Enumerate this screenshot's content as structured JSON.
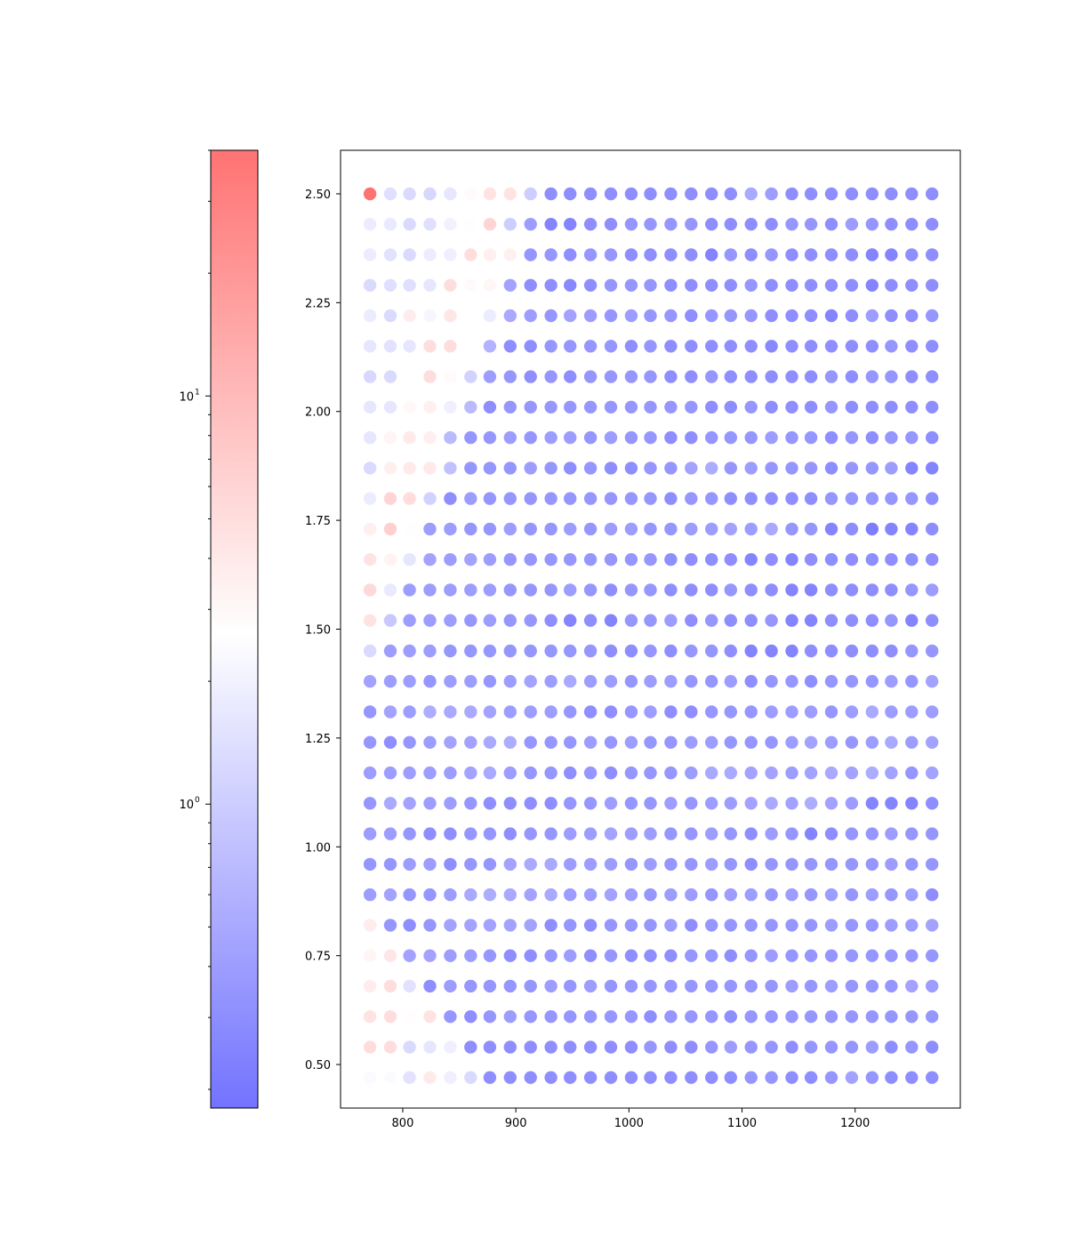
{
  "chart_data": {
    "type": "scatter",
    "title": "",
    "xlabel": "",
    "ylabel": "",
    "x": [
      771,
      789,
      806,
      824,
      842,
      860,
      877,
      895,
      913,
      931,
      948,
      966,
      984,
      1002,
      1019,
      1037,
      1055,
      1073,
      1090,
      1108,
      1126,
      1144,
      1161,
      1179,
      1197,
      1215,
      1232,
      1250,
      1268
    ],
    "y": [
      2.5,
      2.43,
      2.36,
      2.29,
      2.22,
      2.15,
      2.08,
      2.01,
      1.94,
      1.87,
      1.8,
      1.73,
      1.66,
      1.59,
      1.52,
      1.45,
      1.38,
      1.31,
      1.24,
      1.17,
      1.1,
      1.03,
      0.96,
      0.89,
      0.82,
      0.75,
      0.68,
      0.61,
      0.54,
      0.47
    ],
    "xlim": [
      745,
      1293
    ],
    "ylim": [
      0.4,
      2.6
    ],
    "xticks": [
      800,
      900,
      1000,
      1100,
      1200
    ],
    "xtick_labels": [
      "800",
      "900",
      "1000",
      "1100",
      "1200"
    ],
    "yticks": [
      0.5,
      0.75,
      1.0,
      1.25,
      1.5,
      1.75,
      2.0,
      2.25,
      2.5
    ],
    "ytick_labels": [
      "0.50",
      "0.75",
      "1.00",
      "1.25",
      "1.50",
      "1.75",
      "2.00",
      "2.25",
      "2.50"
    ],
    "colorbar": {
      "scale": "log",
      "range": [
        0.18,
        40
      ],
      "ticks": [
        1,
        10
      ],
      "tick_labels": [
        {
          "base": "10",
          "exp": "0"
        },
        {
          "base": "10",
          "exp": "1"
        }
      ],
      "colormap": "bwr",
      "color_low": "#4444ff",
      "color_mid": "#ffffff",
      "color_high": "#ff4444",
      "center": 2.6
    },
    "marker_alpha": 0.75,
    "values_note_rows_top_to_bottom": "",
    "values": [
      [
        40,
        1.4,
        1.3,
        1.2,
        1.6,
        2.8,
        4.5,
        4.5,
        1,
        0.3,
        0.3,
        0.3,
        0.3,
        0.3,
        0.3,
        0.3,
        0.3,
        0.3,
        0.3,
        0.5,
        0.4,
        0.3,
        0.3,
        0.3,
        0.3,
        0.3,
        0.3,
        0.3,
        0.3
      ],
      [
        1.8,
        1.7,
        1.3,
        1.4,
        2,
        2.7,
        6,
        1,
        0.4,
        0.25,
        0.25,
        0.3,
        0.3,
        0.35,
        0.35,
        0.35,
        0.35,
        0.3,
        0.3,
        0.3,
        0.3,
        0.35,
        0.35,
        0.3,
        0.4,
        0.35,
        0.3,
        0.3,
        0.3
      ],
      [
        1.8,
        1.5,
        1.3,
        1.8,
        1.9,
        5,
        3.6,
        3.5,
        0.35,
        0.35,
        0.3,
        0.35,
        0.35,
        0.3,
        0.3,
        0.3,
        0.3,
        0.25,
        0.35,
        0.3,
        0.35,
        0.3,
        0.3,
        0.3,
        0.3,
        0.25,
        0.25,
        0.3,
        0.3
      ],
      [
        1.3,
        1.4,
        1.4,
        1.6,
        5,
        2.9,
        3.1,
        0.45,
        0.3,
        0.3,
        0.27,
        0.3,
        0.35,
        0.35,
        0.35,
        0.3,
        0.3,
        0.3,
        0.3,
        0.35,
        0.3,
        0.3,
        0.3,
        0.3,
        0.3,
        0.25,
        0.3,
        0.3,
        0.3
      ],
      [
        1.8,
        1.3,
        3.7,
        2.2,
        4.3,
        2.6,
        1.8,
        0.5,
        0.4,
        0.35,
        0.45,
        0.4,
        0.35,
        0.4,
        0.35,
        0.35,
        0.3,
        0.35,
        0.35,
        0.35,
        0.3,
        0.3,
        0.3,
        0.25,
        0.3,
        0.4,
        0.3,
        0.3,
        0.35
      ],
      [
        1.6,
        1.5,
        1.6,
        5,
        5,
        2.6,
        0.6,
        0.3,
        0.3,
        0.35,
        0.35,
        0.35,
        0.35,
        0.3,
        0.35,
        0.3,
        0.3,
        0.3,
        0.3,
        0.3,
        0.27,
        0.3,
        0.3,
        0.3,
        0.3,
        0.3,
        0.35,
        0.3,
        0.3
      ],
      [
        1.2,
        1.3,
        2.6,
        5,
        2.8,
        1.1,
        0.4,
        0.35,
        0.3,
        0.35,
        0.3,
        0.35,
        0.35,
        0.35,
        0.35,
        0.3,
        0.3,
        0.35,
        0.3,
        0.3,
        0.3,
        0.3,
        0.3,
        0.35,
        0.3,
        0.35,
        0.35,
        0.3,
        0.3
      ],
      [
        1.6,
        1.6,
        3,
        3.5,
        1.9,
        0.7,
        0.3,
        0.35,
        0.35,
        0.35,
        0.35,
        0.35,
        0.35,
        0.35,
        0.35,
        0.35,
        0.35,
        0.3,
        0.3,
        0.35,
        0.3,
        0.3,
        0.3,
        0.35,
        0.3,
        0.3,
        0.3,
        0.3,
        0.3
      ],
      [
        1.6,
        3.2,
        4,
        3.6,
        0.7,
        0.35,
        0.35,
        0.4,
        0.35,
        0.4,
        0.4,
        0.35,
        0.4,
        0.35,
        0.35,
        0.3,
        0.3,
        0.35,
        0.35,
        0.35,
        0.4,
        0.35,
        0.35,
        0.3,
        0.35,
        0.3,
        0.35,
        0.35,
        0.3
      ],
      [
        1.3,
        3.5,
        4,
        4,
        0.8,
        0.35,
        0.35,
        0.35,
        0.4,
        0.35,
        0.3,
        0.35,
        0.3,
        0.3,
        0.35,
        0.35,
        0.45,
        0.55,
        0.35,
        0.4,
        0.35,
        0.35,
        0.35,
        0.3,
        0.35,
        0.35,
        0.4,
        0.25,
        0.25
      ],
      [
        1.8,
        6,
        5,
        1.1,
        0.3,
        0.4,
        0.35,
        0.35,
        0.35,
        0.35,
        0.35,
        0.35,
        0.35,
        0.35,
        0.35,
        0.3,
        0.35,
        0.35,
        0.3,
        0.3,
        0.3,
        0.3,
        0.3,
        0.35,
        0.35,
        0.35,
        0.35,
        0.35,
        0.3
      ],
      [
        3.5,
        6.5,
        2.7,
        0.4,
        0.4,
        0.35,
        0.35,
        0.4,
        0.35,
        0.35,
        0.4,
        0.35,
        0.4,
        0.4,
        0.35,
        0.35,
        0.4,
        0.4,
        0.45,
        0.4,
        0.5,
        0.35,
        0.35,
        0.25,
        0.3,
        0.22,
        0.25,
        0.25,
        0.3
      ],
      [
        4.5,
        3.3,
        1.6,
        0.45,
        0.4,
        0.45,
        0.4,
        0.35,
        0.35,
        0.35,
        0.35,
        0.35,
        0.35,
        0.35,
        0.35,
        0.3,
        0.3,
        0.3,
        0.3,
        0.25,
        0.3,
        0.25,
        0.3,
        0.3,
        0.3,
        0.3,
        0.3,
        0.3,
        0.3
      ],
      [
        5.5,
        1.7,
        0.4,
        0.4,
        0.4,
        0.4,
        0.4,
        0.35,
        0.35,
        0.35,
        0.4,
        0.35,
        0.3,
        0.35,
        0.35,
        0.3,
        0.3,
        0.3,
        0.35,
        0.3,
        0.3,
        0.25,
        0.25,
        0.3,
        0.3,
        0.3,
        0.3,
        0.35,
        0.4
      ],
      [
        4.5,
        0.9,
        0.4,
        0.4,
        0.4,
        0.35,
        0.4,
        0.35,
        0.35,
        0.3,
        0.25,
        0.3,
        0.25,
        0.35,
        0.35,
        0.4,
        0.3,
        0.35,
        0.3,
        0.3,
        0.35,
        0.25,
        0.25,
        0.3,
        0.3,
        0.3,
        0.35,
        0.25,
        0.3
      ],
      [
        1.3,
        0.4,
        0.4,
        0.4,
        0.35,
        0.35,
        0.35,
        0.35,
        0.35,
        0.35,
        0.35,
        0.35,
        0.3,
        0.3,
        0.35,
        0.3,
        0.35,
        0.35,
        0.3,
        0.25,
        0.25,
        0.25,
        0.3,
        0.3,
        0.3,
        0.3,
        0.3,
        0.35,
        0.35
      ],
      [
        0.45,
        0.4,
        0.4,
        0.35,
        0.4,
        0.4,
        0.35,
        0.4,
        0.45,
        0.4,
        0.5,
        0.4,
        0.4,
        0.35,
        0.4,
        0.4,
        0.35,
        0.35,
        0.4,
        0.3,
        0.35,
        0.35,
        0.3,
        0.35,
        0.35,
        0.35,
        0.4,
        0.35,
        0.45
      ],
      [
        0.35,
        0.45,
        0.4,
        0.55,
        0.5,
        0.5,
        0.45,
        0.4,
        0.4,
        0.4,
        0.35,
        0.3,
        0.3,
        0.35,
        0.4,
        0.3,
        0.3,
        0.35,
        0.35,
        0.35,
        0.4,
        0.4,
        0.4,
        0.35,
        0.4,
        0.5,
        0.4,
        0.4,
        0.4
      ],
      [
        0.35,
        0.3,
        0.35,
        0.4,
        0.45,
        0.45,
        0.5,
        0.55,
        0.35,
        0.35,
        0.35,
        0.4,
        0.35,
        0.4,
        0.35,
        0.35,
        0.4,
        0.4,
        0.35,
        0.35,
        0.35,
        0.4,
        0.45,
        0.4,
        0.35,
        0.4,
        0.5,
        0.4,
        0.45
      ],
      [
        0.4,
        0.4,
        0.4,
        0.4,
        0.4,
        0.45,
        0.5,
        0.4,
        0.35,
        0.35,
        0.3,
        0.35,
        0.3,
        0.35,
        0.35,
        0.35,
        0.4,
        0.5,
        0.5,
        0.45,
        0.45,
        0.4,
        0.45,
        0.5,
        0.45,
        0.55,
        0.45,
        0.35,
        0.45
      ],
      [
        0.35,
        0.5,
        0.45,
        0.4,
        0.4,
        0.35,
        0.3,
        0.3,
        0.3,
        0.3,
        0.35,
        0.35,
        0.4,
        0.35,
        0.35,
        0.4,
        0.35,
        0.4,
        0.4,
        0.45,
        0.5,
        0.45,
        0.55,
        0.45,
        0.4,
        0.25,
        0.25,
        0.25,
        0.3
      ],
      [
        0.4,
        0.4,
        0.35,
        0.3,
        0.3,
        0.35,
        0.35,
        0.3,
        0.35,
        0.35,
        0.4,
        0.4,
        0.45,
        0.4,
        0.4,
        0.35,
        0.35,
        0.4,
        0.35,
        0.3,
        0.4,
        0.35,
        0.25,
        0.3,
        0.35,
        0.35,
        0.4,
        0.35,
        0.35
      ],
      [
        0.35,
        0.35,
        0.4,
        0.4,
        0.3,
        0.35,
        0.35,
        0.45,
        0.5,
        0.5,
        0.4,
        0.4,
        0.4,
        0.35,
        0.4,
        0.35,
        0.35,
        0.4,
        0.35,
        0.3,
        0.35,
        0.35,
        0.35,
        0.35,
        0.35,
        0.35,
        0.4,
        0.35,
        0.35
      ],
      [
        0.4,
        0.45,
        0.35,
        0.35,
        0.4,
        0.5,
        0.55,
        0.5,
        0.45,
        0.5,
        0.4,
        0.4,
        0.45,
        0.4,
        0.35,
        0.4,
        0.4,
        0.35,
        0.4,
        0.4,
        0.35,
        0.4,
        0.35,
        0.4,
        0.35,
        0.4,
        0.35,
        0.4,
        0.3
      ],
      [
        3.8,
        0.35,
        0.3,
        0.35,
        0.45,
        0.45,
        0.45,
        0.45,
        0.45,
        0.3,
        0.35,
        0.3,
        0.35,
        0.35,
        0.35,
        0.4,
        0.3,
        0.35,
        0.35,
        0.35,
        0.35,
        0.35,
        0.35,
        0.4,
        0.35,
        0.35,
        0.4,
        0.4,
        0.45
      ],
      [
        3.2,
        4.2,
        0.45,
        0.45,
        0.4,
        0.4,
        0.35,
        0.3,
        0.3,
        0.35,
        0.4,
        0.3,
        0.35,
        0.3,
        0.3,
        0.3,
        0.35,
        0.35,
        0.3,
        0.35,
        0.4,
        0.35,
        0.35,
        0.35,
        0.35,
        0.35,
        0.35,
        0.35,
        0.35
      ],
      [
        3.8,
        5,
        1.5,
        0.3,
        0.4,
        0.35,
        0.35,
        0.35,
        0.35,
        0.4,
        0.35,
        0.4,
        0.35,
        0.35,
        0.35,
        0.35,
        0.35,
        0.35,
        0.35,
        0.35,
        0.35,
        0.4,
        0.35,
        0.4,
        0.35,
        0.35,
        0.35,
        0.45,
        0.4
      ],
      [
        4.5,
        5,
        2.7,
        4.5,
        0.35,
        0.3,
        0.35,
        0.4,
        0.35,
        0.35,
        0.35,
        0.35,
        0.35,
        0.35,
        0.3,
        0.35,
        0.35,
        0.35,
        0.3,
        0.35,
        0.35,
        0.35,
        0.35,
        0.35,
        0.35,
        0.35,
        0.35,
        0.35,
        0.35
      ],
      [
        5,
        5,
        1.3,
        1.6,
        1.9,
        0.3,
        0.3,
        0.3,
        0.3,
        0.3,
        0.3,
        0.3,
        0.3,
        0.3,
        0.35,
        0.3,
        0.3,
        0.35,
        0.4,
        0.35,
        0.35,
        0.3,
        0.35,
        0.35,
        0.35,
        0.4,
        0.3,
        0.35,
        0.3
      ],
      [
        2.4,
        2.4,
        1.5,
        3.9,
        1.9,
        1.3,
        0.3,
        0.3,
        0.3,
        0.3,
        0.3,
        0.3,
        0.3,
        0.3,
        0.3,
        0.3,
        0.3,
        0.3,
        0.3,
        0.35,
        0.35,
        0.3,
        0.3,
        0.35,
        0.45,
        0.35,
        0.3,
        0.3,
        0.3
      ]
    ]
  }
}
